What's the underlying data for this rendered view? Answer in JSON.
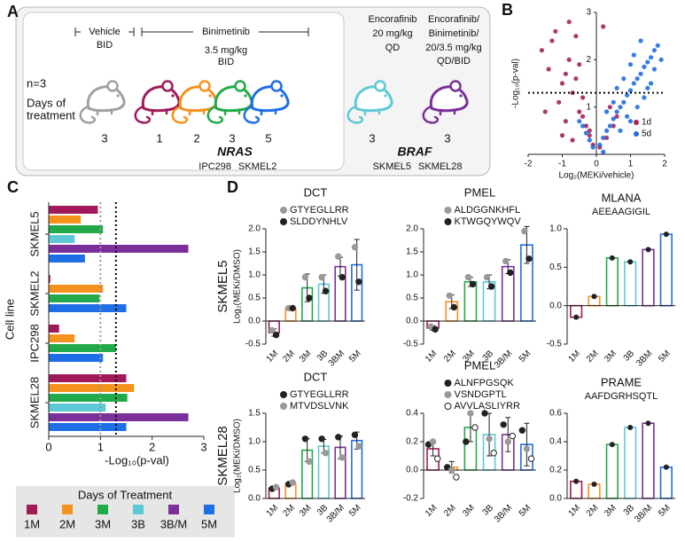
{
  "panel_labels": [
    "A",
    "B",
    "C",
    "D"
  ],
  "schematic": {
    "headers": [
      {
        "lines": [
          "Vehicle",
          "BID"
        ]
      },
      {
        "lines": [
          "Binimetinib",
          "3.5 mg/kg",
          "BID"
        ]
      },
      {
        "lines": [
          "Encorafinib",
          "20 mg/kg",
          "QD"
        ]
      },
      {
        "lines": [
          "Encorafinib/",
          "Binimetinib/",
          "20/3.5 mg/kg",
          "QD/BID"
        ]
      }
    ],
    "n_label": "n=3",
    "days_label": [
      "Days of",
      "treatment"
    ],
    "mice": [
      {
        "color": "#a0a0a0",
        "days": 3
      },
      {
        "color": "#a0195a",
        "days": 1
      },
      {
        "color": "#f5921e",
        "days": 2
      },
      {
        "color": "#22a94a",
        "days": 3
      },
      {
        "color": "#1e6fe6",
        "days": 5
      },
      {
        "color": "#5ec9d6",
        "days": 3
      },
      {
        "color": "#7b2f99",
        "days": 3
      }
    ],
    "groups": [
      {
        "gene": "NRAS",
        "cell_lines": [
          "IPC298",
          "SKMEL2"
        ]
      },
      {
        "gene": "BRAF",
        "cell_lines": [
          "SKMEL5",
          "SKMEL28"
        ]
      }
    ]
  },
  "chart_data": [
    {
      "type": "scatter",
      "xlabel": "Log₂(MEKi/vehicle)",
      "ylabel": "-Log₁₀(p-val)",
      "xlim": [
        -2,
        2
      ],
      "ylim": [
        0,
        3
      ],
      "xticks": [
        -2,
        -1,
        0,
        1,
        2
      ],
      "yticks": [
        1,
        2,
        3
      ],
      "hline": 1.3,
      "legend": "lower right",
      "series": [
        {
          "name": "1d",
          "color": "#a3245e",
          "x": [
            -1.6,
            -1.4,
            -1.2,
            -1.0,
            -0.8,
            -0.6,
            -0.4,
            -0.2,
            -1.5,
            -1.1,
            -0.9,
            -0.7,
            -0.5,
            -0.3,
            -0.1,
            -1.3,
            -0.8,
            -0.5,
            -0.2,
            0.1,
            0.3,
            0.5,
            0.2,
            -0.6,
            -0.4,
            -1.0,
            -0.7,
            0.4,
            0.6,
            -0.9
          ],
          "values": [
            2.2,
            1.8,
            2.6,
            1.5,
            2.0,
            1.6,
            1.2,
            0.5,
            0.9,
            1.1,
            0.7,
            1.3,
            0.9,
            0.6,
            0.2,
            2.4,
            2.8,
            1.9,
            0.4,
            0.15,
            0.35,
            0.6,
            2.7,
            2.5,
            0.8,
            0.4,
            0.3,
            1.0,
            0.8,
            1.7
          ]
        },
        {
          "name": "5d",
          "color": "#1f6fe0",
          "x": [
            0.1,
            0.2,
            0.3,
            0.4,
            0.5,
            0.6,
            0.7,
            0.8,
            0.9,
            1.0,
            1.1,
            1.2,
            1.3,
            1.4,
            1.5,
            1.6,
            1.7,
            1.8,
            0.5,
            0.8,
            1.0,
            1.2,
            1.5,
            -0.1,
            -0.2,
            -0.3,
            -0.4,
            -0.5,
            0.3,
            0.6,
            0.9,
            1.1,
            1.4,
            1.7,
            0.7,
            1.3,
            1.9,
            0.2,
            1.0,
            1.6
          ],
          "values": [
            0.2,
            0.35,
            0.5,
            0.6,
            0.75,
            0.9,
            1.0,
            1.1,
            1.25,
            1.35,
            1.5,
            1.6,
            1.7,
            1.85,
            1.95,
            2.05,
            2.2,
            2.3,
            1.1,
            1.6,
            1.9,
            1.0,
            1.4,
            0.15,
            0.3,
            0.45,
            0.6,
            0.7,
            0.9,
            1.4,
            0.8,
            2.1,
            1.2,
            1.8,
            0.5,
            2.4,
            2.0,
            0.05,
            0.7,
            1.5
          ]
        }
      ]
    },
    {
      "type": "barh",
      "xlabel": "-Log₁₀(p-val)",
      "ylabel": "Cell line",
      "legend_title": "Days of Treatment",
      "categories": [
        "SKMEL5",
        "SKMEL2",
        "IPC298",
        "SKMEL28"
      ],
      "xlim": [
        0,
        3
      ],
      "xticks": [
        0,
        1,
        2,
        3
      ],
      "ref_lines": [
        {
          "value": 1,
          "color": "#999999"
        },
        {
          "value": 1.3,
          "color": "#000000"
        }
      ],
      "series": [
        {
          "name": "1M",
          "color": "#a0195a",
          "values": [
            0.95,
            0.03,
            0.2,
            1.5
          ]
        },
        {
          "name": "2M",
          "color": "#f5921e",
          "values": [
            0.62,
            1.05,
            0.5,
            1.65
          ]
        },
        {
          "name": "3M",
          "color": "#22a94a",
          "values": [
            1.05,
            0.98,
            1.3,
            1.52
          ]
        },
        {
          "name": "3B",
          "color": "#5ec9d6",
          "values": [
            0.5,
            null,
            null,
            1.1
          ]
        },
        {
          "name": "3B/M",
          "color": "#7b2f99",
          "values": [
            2.7,
            null,
            null,
            2.7
          ]
        },
        {
          "name": "5M",
          "color": "#1e6fe6",
          "values": [
            0.7,
            1.5,
            1.05,
            1.5
          ]
        }
      ]
    },
    {
      "type": "bar",
      "title": "DCT",
      "row_label": "SKMEL5",
      "ylabel": "Log₂(MEKi/DMSO)",
      "categories": [
        "1M",
        "2M",
        "3M",
        "3B",
        "3BM",
        "5M"
      ],
      "colors": [
        "#a0195a",
        "#f5921e",
        "#22a94a",
        "#5ec9d6",
        "#7b2f99",
        "#1e6fe6"
      ],
      "ylim": [
        -0.5,
        2.0
      ],
      "yticks": [
        -0.5,
        {
          "value": 0,
          "label": "0.0"
        },
        0.5,
        {
          "value": 1,
          "label": "1.0"
        },
        1.5,
        {
          "value": 2,
          "label": "2.0"
        }
      ],
      "values": [
        -0.25,
        0.28,
        0.72,
        0.8,
        1.18,
        1.22
      ],
      "errors": [
        0.08,
        0.02,
        0.3,
        0.2,
        0.2,
        0.55
      ],
      "points": [
        {
          "name": "GTYEGLLRR",
          "color": "#999999",
          "marker": "filled",
          "values": [
            -0.2,
            0.28,
            0.95,
            0.95,
            1.4,
            1.6
          ]
        },
        {
          "name": "SLDDYNHLV",
          "color": "#222222",
          "marker": "filled",
          "values": [
            -0.3,
            0.28,
            0.5,
            0.65,
            0.95,
            0.85
          ]
        }
      ]
    },
    {
      "type": "bar",
      "title": "PMEL",
      "categories": [
        "1M",
        "2M",
        "3M",
        "3B",
        "3B/M",
        "5M"
      ],
      "colors": [
        "#a0195a",
        "#f5921e",
        "#22a94a",
        "#5ec9d6",
        "#7b2f99",
        "#1e6fe6"
      ],
      "ylim": [
        -0.5,
        2.0
      ],
      "yticks": [
        -0.5,
        {
          "value": 0,
          "label": "0.0"
        },
        0.5,
        {
          "value": 1,
          "label": "1.0"
        },
        1.5,
        {
          "value": 2,
          "label": "2.0"
        }
      ],
      "values": [
        -0.15,
        0.42,
        0.85,
        0.85,
        1.18,
        1.65
      ],
      "errors": [
        0.05,
        0.15,
        0.1,
        0.15,
        0.15,
        0.4
      ],
      "points": [
        {
          "name": "ALDGGNKHFL",
          "color": "#999999",
          "marker": "filled",
          "values": [
            -0.12,
            0.55,
            0.95,
            0.95,
            1.3,
            1.95
          ]
        },
        {
          "name": "KTWGQYWQV",
          "color": "#222222",
          "marker": "filled",
          "values": [
            -0.18,
            0.3,
            0.8,
            0.75,
            1.05,
            1.35
          ]
        }
      ]
    },
    {
      "type": "bar",
      "title": "MLANA",
      "subtitle": "AEEAAGIGIL",
      "point_color": "#222222",
      "categories": [
        "1M",
        "2M",
        "3M",
        "3B",
        "3BM",
        "5M"
      ],
      "colors": [
        "#a0195a",
        "#f5921e",
        "#22a94a",
        "#5ec9d6",
        "#7b2f99",
        "#1e6fe6"
      ],
      "ylim": [
        -0.5,
        1.0
      ],
      "yticks": [
        -0.5,
        {
          "value": 0,
          "label": "0.0"
        },
        0.5,
        {
          "value": 1,
          "label": "1.0"
        }
      ],
      "values": [
        -0.15,
        0.12,
        0.62,
        0.57,
        0.73,
        0.93
      ]
    },
    {
      "type": "bar",
      "title": "DCT",
      "row_label": "SKMEL28",
      "ylabel": "Log₂(MEKi/DMSO)",
      "categories": [
        "1M",
        "2M",
        "3M",
        "3B",
        "3B/M",
        "5M"
      ],
      "colors": [
        "#a0195a",
        "#f5921e",
        "#22a94a",
        "#5ec9d6",
        "#7b2f99",
        "#1e6fe6"
      ],
      "ylim": [
        0,
        1.5
      ],
      "yticks": [
        {
          "value": 0,
          "label": "0.0"
        },
        0.5,
        {
          "value": 1,
          "label": "1.0"
        },
        1.5
      ],
      "values": [
        0.18,
        0.26,
        0.85,
        0.92,
        0.9,
        1.02
      ],
      "errors": [
        0.02,
        0.02,
        0.2,
        0.12,
        0.2,
        0.15
      ],
      "points": [
        {
          "name": "GTYEGLLRR",
          "color": "#222222",
          "marker": "filled",
          "values": [
            0.17,
            0.25,
            1.05,
            1.05,
            1.08,
            1.12
          ]
        },
        {
          "name": "MTVDSLVNK",
          "color": "#999999",
          "marker": "filled",
          "values": [
            0.2,
            0.28,
            0.65,
            0.8,
            0.72,
            0.92
          ]
        }
      ]
    },
    {
      "type": "bar",
      "title": "PMEL",
      "categories": [
        "1M",
        "2M",
        "3M",
        "3B",
        "3B/M",
        "5M"
      ],
      "colors": [
        "#a0195a",
        "#f5921e",
        "#22a94a",
        "#5ec9d6",
        "#7b2f99",
        "#1e6fe6"
      ],
      "ylim": [
        -0.2,
        0.4
      ],
      "yticks": [
        -0.2,
        {
          "value": 0,
          "label": "0.0"
        },
        0.2,
        0.4
      ],
      "values": [
        0.15,
        0.02,
        0.3,
        0.25,
        0.25,
        0.18
      ],
      "errors": [
        0.05,
        0.04,
        0.1,
        0.15,
        0.12,
        0.15
      ],
      "points": [
        {
          "name": "ALNFPGSQK",
          "color": "#222222",
          "marker": "filled",
          "values": [
            0.18,
            0.02,
            0.2,
            0.4,
            0.32,
            0.28
          ]
        },
        {
          "name": "VSNDGPTL",
          "color": "#999999",
          "marker": "filled",
          "values": [
            0.2,
            0.0,
            0.4,
            0.22,
            0.2,
            0.15
          ]
        },
        {
          "name": "AVVLASLIYRR",
          "color": "#222222",
          "marker": "open",
          "values": [
            0.08,
            -0.05,
            0.3,
            0.12,
            0.24,
            0.08
          ]
        }
      ]
    },
    {
      "type": "bar",
      "title": "PRAME",
      "subtitle": "AAFDGRHSQTL",
      "point_color": "#222222",
      "categories": [
        "1M",
        "2M",
        "3M",
        "3B",
        "3B/M",
        "5M"
      ],
      "colors": [
        "#a0195a",
        "#f5921e",
        "#22a94a",
        "#5ec9d6",
        "#7b2f99",
        "#1e6fe6"
      ],
      "ylim": [
        0,
        0.6
      ],
      "yticks": [
        {
          "value": 0,
          "label": "0.0"
        },
        0.2,
        0.4,
        0.6
      ],
      "values": [
        0.12,
        0.1,
        0.38,
        0.5,
        0.53,
        0.22
      ]
    }
  ]
}
